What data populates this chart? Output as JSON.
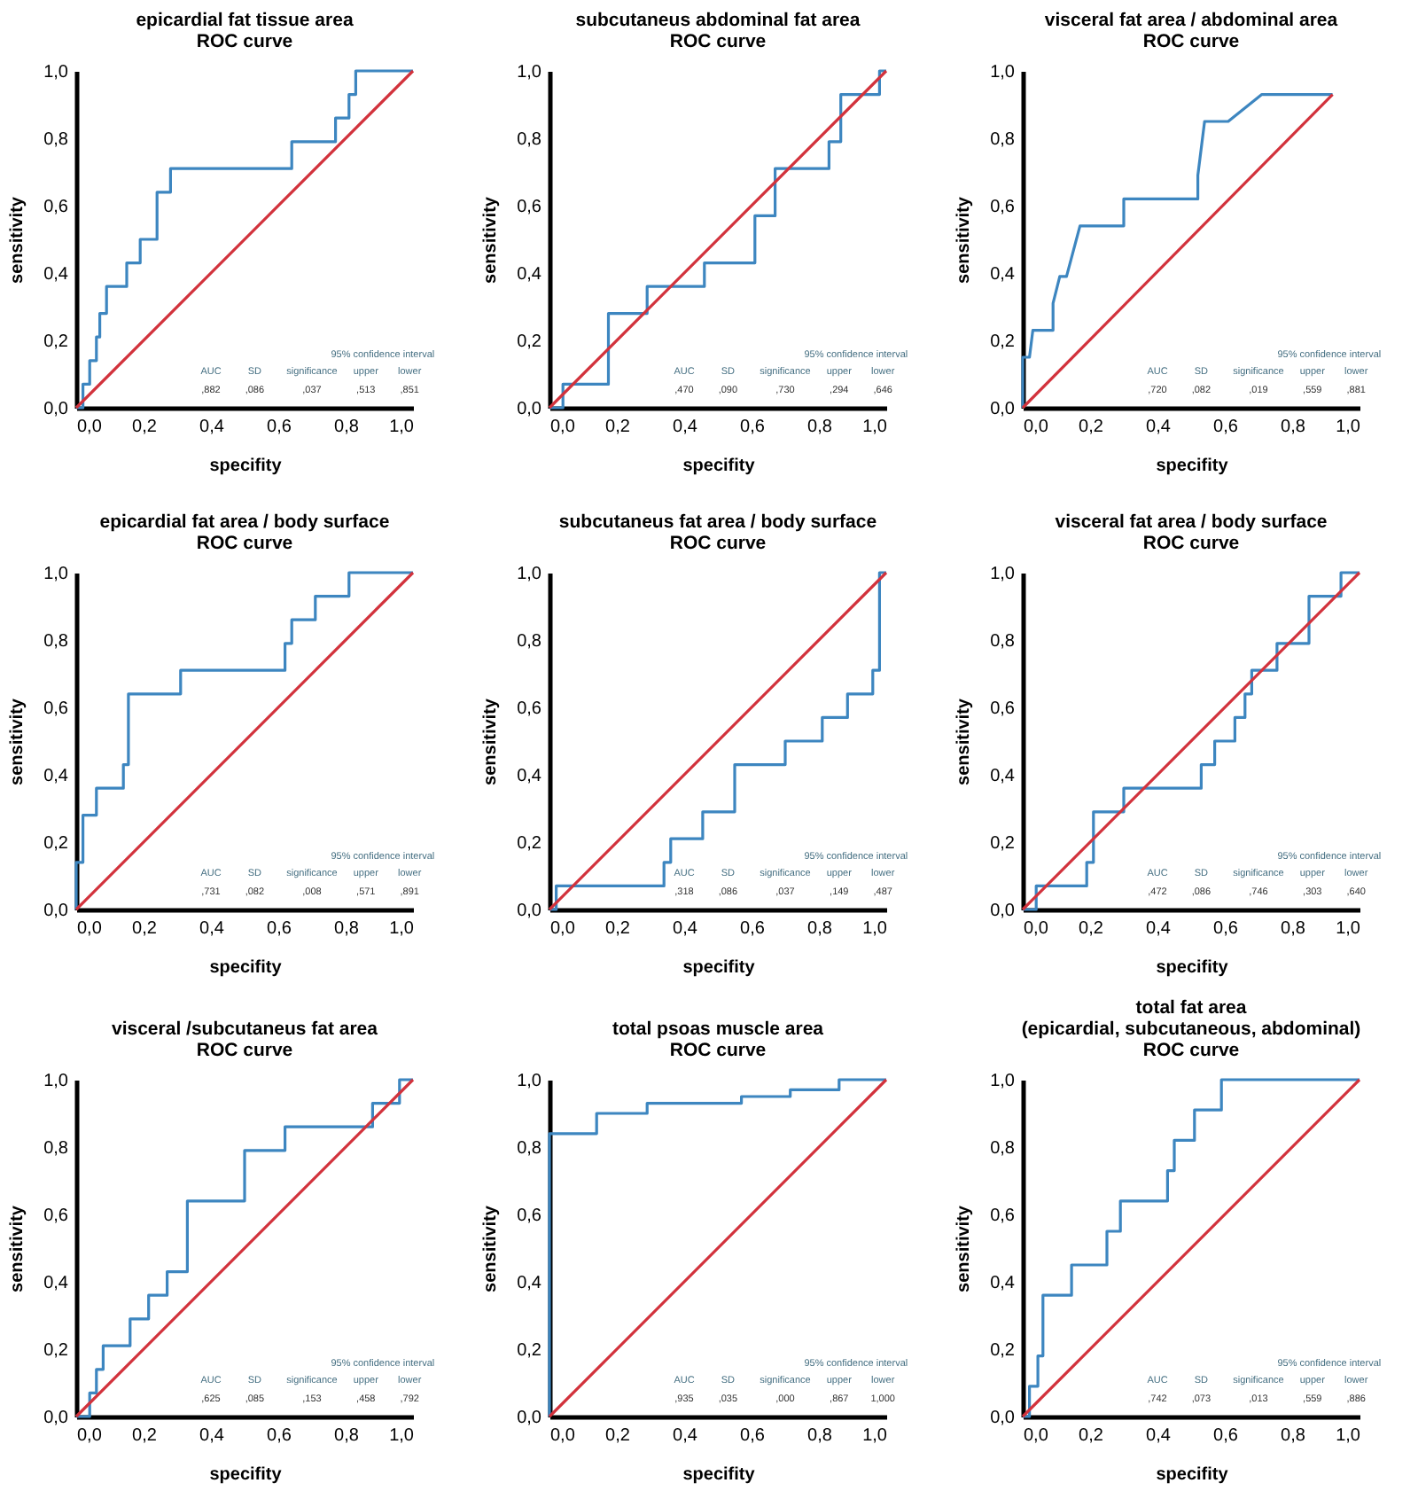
{
  "chart_data": [
    {
      "type": "step",
      "title": "epicardial fat  tissue area\nROC curve",
      "xlabel": "specifity",
      "ylabel": "sensitivity",
      "xlim": [
        0,
        1
      ],
      "ylim": [
        0,
        1
      ],
      "xticks": [
        {
          "value": 0,
          "label": "0,0"
        },
        {
          "value": 0.2,
          "label": "0,2"
        },
        {
          "value": 0.4,
          "label": "0,4"
        },
        {
          "value": 0.6,
          "label": "0,6"
        },
        {
          "value": 0.8,
          "label": "0,8"
        },
        {
          "value": 1,
          "label": "1,0"
        }
      ],
      "yticks": [
        {
          "value": 0,
          "label": "0,0"
        },
        {
          "value": 0.2,
          "label": "0,2"
        },
        {
          "value": 0.4,
          "label": "0,4"
        },
        {
          "value": 0.6,
          "label": "0,6"
        },
        {
          "value": 0.8,
          "label": "0,8"
        },
        {
          "value": 1,
          "label": "1,0"
        }
      ],
      "annotations": [
        "95% confidence interval",
        "AUC",
        "SD",
        "significance",
        "upper",
        "lower",
        ",882",
        ",086",
        ",037",
        ",513",
        ",851"
      ],
      "series": [
        {
          "color": "#3d86c0",
          "x": [
            0,
            0.02,
            0.04,
            0.06,
            0.07,
            0.09,
            0.15,
            0.19,
            0.24,
            0.28,
            0.64,
            0.77,
            0.81,
            0.83,
            1
          ],
          "values": [
            0,
            0.07,
            0.14,
            0.21,
            0.28,
            0.36,
            0.43,
            0.5,
            0.64,
            0.71,
            0.79,
            0.86,
            0.93,
            1,
            1
          ]
        },
        {
          "type": "line",
          "color": "#d2323c",
          "x": [
            0,
            1
          ],
          "values": [
            0,
            1
          ]
        }
      ]
    },
    {
      "type": "step",
      "title": "subcutaneus abdominal fat area\nROC curve",
      "xlabel": "specifity",
      "ylabel": "sensitivity",
      "xlim": [
        0,
        1
      ],
      "ylim": [
        0,
        1
      ],
      "xticks": [
        {
          "value": 0,
          "label": "0,0"
        },
        {
          "value": 0.2,
          "label": "0,2"
        },
        {
          "value": 0.4,
          "label": "0,4"
        },
        {
          "value": 0.6,
          "label": "0,6"
        },
        {
          "value": 0.8,
          "label": "0,8"
        },
        {
          "value": 1,
          "label": "1,0"
        }
      ],
      "yticks": [
        {
          "value": 0,
          "label": "0,0"
        },
        {
          "value": 0.2,
          "label": "0,2"
        },
        {
          "value": 0.4,
          "label": "0,4"
        },
        {
          "value": 0.6,
          "label": "0,6"
        },
        {
          "value": 0.8,
          "label": "0,8"
        },
        {
          "value": 1,
          "label": "1,0"
        }
      ],
      "annotations": [
        "95% confidence interval",
        "AUC",
        "SD",
        "significance",
        "upper",
        "lower",
        ",470",
        ",090",
        ",730",
        ",294",
        ",646"
      ],
      "series": [
        {
          "color": "#3d86c0",
          "x": [
            0,
            0.04,
            0.175,
            0.29,
            0.46,
            0.61,
            0.67,
            0.83,
            0.865,
            0.98,
            1
          ],
          "values": [
            0,
            0.07,
            0.28,
            0.36,
            0.43,
            0.57,
            0.71,
            0.79,
            0.93,
            1,
            1
          ]
        },
        {
          "type": "line",
          "color": "#d2323c",
          "x": [
            0,
            1
          ],
          "values": [
            0,
            1
          ]
        }
      ]
    },
    {
      "type": "line",
      "title": "visceral fat area / abdominal area\nROC curve",
      "xlabel": "specifity",
      "ylabel": "sensitivity",
      "xlim": [
        0,
        1
      ],
      "ylim": [
        0,
        1
      ],
      "xticks": [
        {
          "value": 0,
          "label": "0,0"
        },
        {
          "value": 0.2,
          "label": "0,2"
        },
        {
          "value": 0.4,
          "label": "0,4"
        },
        {
          "value": 0.6,
          "label": "0,6"
        },
        {
          "value": 0.8,
          "label": "0,8"
        },
        {
          "value": 1,
          "label": "1,0"
        }
      ],
      "yticks": [
        {
          "value": 0,
          "label": "0,0"
        },
        {
          "value": 0.2,
          "label": "0,2"
        },
        {
          "value": 0.4,
          "label": "0,4"
        },
        {
          "value": 0.6,
          "label": "0,6"
        },
        {
          "value": 0.8,
          "label": "0,8"
        },
        {
          "value": 1,
          "label": "1,0"
        }
      ],
      "annotations": [
        "95% confidence interval",
        "AUC",
        "SD",
        "significance",
        "upper",
        "lower",
        ",720",
        ",082",
        ",019",
        ",559",
        ",881"
      ],
      "series": [
        {
          "color": "#3d86c0",
          "x": [
            0,
            0,
            0.02,
            0.03,
            0.09,
            0.09,
            0.11,
            0.13,
            0.17,
            0.3,
            0.3,
            0.52,
            0.52,
            0.54,
            0.61,
            0.71,
            0.92
          ],
          "values": [
            0,
            0.15,
            0.15,
            0.23,
            0.23,
            0.31,
            0.39,
            0.39,
            0.54,
            0.54,
            0.62,
            0.62,
            0.69,
            0.85,
            0.85,
            0.93,
            0.93
          ]
        },
        {
          "type": "line",
          "color": "#d2323c",
          "x": [
            0,
            0.92
          ],
          "values": [
            0,
            0.93
          ]
        }
      ]
    },
    {
      "type": "step",
      "title": "epicardial fat area / body surface\nROC curve",
      "xlabel": "specifity",
      "ylabel": "sensitivity",
      "xlim": [
        0,
        1
      ],
      "ylim": [
        0,
        1
      ],
      "xticks": [
        {
          "value": 0,
          "label": "0,0"
        },
        {
          "value": 0.2,
          "label": "0,2"
        },
        {
          "value": 0.4,
          "label": "0,4"
        },
        {
          "value": 0.6,
          "label": "0,6"
        },
        {
          "value": 0.8,
          "label": "0,8"
        },
        {
          "value": 1,
          "label": "1,0"
        }
      ],
      "yticks": [
        {
          "value": 0,
          "label": "0,0"
        },
        {
          "value": 0.2,
          "label": "0,2"
        },
        {
          "value": 0.4,
          "label": "0,4"
        },
        {
          "value": 0.6,
          "label": "0,6"
        },
        {
          "value": 0.8,
          "label": "0,8"
        },
        {
          "value": 1,
          "label": "1,0"
        }
      ],
      "annotations": [
        "95% confidence interval",
        "AUC",
        "SD",
        "significance",
        "upper",
        "lower",
        ",731",
        ",082",
        ",008",
        ",571",
        ",891"
      ],
      "series": [
        {
          "color": "#3d86c0",
          "x": [
            0,
            0,
            0.02,
            0.06,
            0.14,
            0.155,
            0.31,
            0.62,
            0.64,
            0.71,
            0.81,
            1
          ],
          "values": [
            0,
            0.14,
            0.28,
            0.36,
            0.43,
            0.64,
            0.71,
            0.79,
            0.86,
            0.93,
            1,
            1
          ]
        },
        {
          "type": "line",
          "color": "#d2323c",
          "x": [
            0,
            1
          ],
          "values": [
            0,
            1
          ]
        }
      ]
    },
    {
      "type": "step",
      "title": "subcutaneus fat area / body surface\nROC curve",
      "xlabel": "specifity",
      "ylabel": "sensitivity",
      "xlim": [
        0,
        1
      ],
      "ylim": [
        0,
        1
      ],
      "xticks": [
        {
          "value": 0,
          "label": "0,0"
        },
        {
          "value": 0.2,
          "label": "0,2"
        },
        {
          "value": 0.4,
          "label": "0,4"
        },
        {
          "value": 0.6,
          "label": "0,6"
        },
        {
          "value": 0.8,
          "label": "0,8"
        },
        {
          "value": 1,
          "label": "1,0"
        }
      ],
      "yticks": [
        {
          "value": 0,
          "label": "0,0"
        },
        {
          "value": 0.2,
          "label": "0,2"
        },
        {
          "value": 0.4,
          "label": "0,4"
        },
        {
          "value": 0.6,
          "label": "0,6"
        },
        {
          "value": 0.8,
          "label": "0,8"
        },
        {
          "value": 1,
          "label": "1,0"
        }
      ],
      "annotations": [
        "95% confidence interval",
        "AUC",
        "SD",
        "significance",
        "upper",
        "lower",
        ",318",
        ",086",
        ",037",
        ",149",
        ",487"
      ],
      "series": [
        {
          "color": "#3d86c0",
          "x": [
            0,
            0.02,
            0.34,
            0.36,
            0.455,
            0.55,
            0.7,
            0.81,
            0.885,
            0.96,
            0.98,
            1
          ],
          "values": [
            0,
            0.07,
            0.14,
            0.21,
            0.29,
            0.43,
            0.5,
            0.57,
            0.64,
            0.71,
            1,
            1
          ]
        },
        {
          "type": "line",
          "color": "#d2323c",
          "x": [
            0,
            1
          ],
          "values": [
            0,
            1
          ]
        }
      ]
    },
    {
      "type": "step",
      "title": "visceral fat area / body surface\nROC curve",
      "xlabel": "specifity",
      "ylabel": "sensitivity",
      "xlim": [
        0,
        1
      ],
      "ylim": [
        0,
        1
      ],
      "xticks": [
        {
          "value": 0,
          "label": "0,0"
        },
        {
          "value": 0.2,
          "label": "0,2"
        },
        {
          "value": 0.4,
          "label": "0,4"
        },
        {
          "value": 0.6,
          "label": "0,6"
        },
        {
          "value": 0.8,
          "label": "0,8"
        },
        {
          "value": 1,
          "label": "1,0"
        }
      ],
      "yticks": [
        {
          "value": 0,
          "label": "0,0"
        },
        {
          "value": 0.2,
          "label": "0,2"
        },
        {
          "value": 0.4,
          "label": "0,4"
        },
        {
          "value": 0.6,
          "label": "0,6"
        },
        {
          "value": 0.8,
          "label": "0,8"
        },
        {
          "value": 1,
          "label": "1,0"
        }
      ],
      "annotations": [
        "95% confidence interval",
        "AUC",
        "SD",
        "significance",
        "upper",
        "lower",
        ",472",
        ",086",
        ",746",
        ",303",
        ",640"
      ],
      "series": [
        {
          "color": "#3d86c0",
          "x": [
            0,
            0.04,
            0.19,
            0.21,
            0.3,
            0.53,
            0.57,
            0.63,
            0.66,
            0.68,
            0.755,
            0.85,
            0.945,
            1
          ],
          "values": [
            0,
            0.07,
            0.14,
            0.29,
            0.36,
            0.43,
            0.5,
            0.57,
            0.64,
            0.71,
            0.79,
            0.93,
            1,
            1
          ]
        },
        {
          "type": "line",
          "color": "#d2323c",
          "x": [
            0,
            1
          ],
          "values": [
            0,
            1
          ]
        }
      ]
    },
    {
      "type": "step",
      "title": "visceral /subcutaneus fat area\nROC curve",
      "xlabel": "specifity",
      "ylabel": "sensitivity",
      "xlim": [
        0,
        1
      ],
      "ylim": [
        0,
        1
      ],
      "xticks": [
        {
          "value": 0,
          "label": "0,0"
        },
        {
          "value": 0.2,
          "label": "0,2"
        },
        {
          "value": 0.4,
          "label": "0,4"
        },
        {
          "value": 0.6,
          "label": "0,6"
        },
        {
          "value": 0.8,
          "label": "0,8"
        },
        {
          "value": 1,
          "label": "1,0"
        }
      ],
      "yticks": [
        {
          "value": 0,
          "label": "0,0"
        },
        {
          "value": 0.2,
          "label": "0,2"
        },
        {
          "value": 0.4,
          "label": "0,4"
        },
        {
          "value": 0.6,
          "label": "0,6"
        },
        {
          "value": 0.8,
          "label": "0,8"
        },
        {
          "value": 1,
          "label": "1,0"
        }
      ],
      "annotations": [
        "95% confidence interval",
        "AUC",
        "SD",
        "significance",
        "upper",
        "lower",
        ",625",
        ",085",
        ",153",
        ",458",
        ",792"
      ],
      "series": [
        {
          "color": "#3d86c0",
          "x": [
            0,
            0.04,
            0.06,
            0.08,
            0.16,
            0.215,
            0.27,
            0.33,
            0.5,
            0.62,
            0.88,
            0.96,
            1
          ],
          "values": [
            0,
            0.07,
            0.14,
            0.21,
            0.29,
            0.36,
            0.43,
            0.64,
            0.79,
            0.86,
            0.93,
            1,
            1
          ]
        },
        {
          "type": "line",
          "color": "#d2323c",
          "x": [
            0,
            1
          ],
          "values": [
            0,
            1
          ]
        }
      ]
    },
    {
      "type": "step",
      "title": "total psoas muscle area\nROC curve",
      "xlabel": "specifity",
      "ylabel": "sensitivity",
      "xlim": [
        0,
        1
      ],
      "ylim": [
        0,
        1
      ],
      "xticks": [
        {
          "value": 0,
          "label": "0,0"
        },
        {
          "value": 0.2,
          "label": "0,2"
        },
        {
          "value": 0.4,
          "label": "0,4"
        },
        {
          "value": 0.6,
          "label": "0,6"
        },
        {
          "value": 0.8,
          "label": "0,8"
        },
        {
          "value": 1,
          "label": "1,0"
        }
      ],
      "yticks": [
        {
          "value": 0,
          "label": "0,0"
        },
        {
          "value": 0.2,
          "label": "0,2"
        },
        {
          "value": 0.4,
          "label": "0,4"
        },
        {
          "value": 0.6,
          "label": "0,6"
        },
        {
          "value": 0.8,
          "label": "0,8"
        },
        {
          "value": 1,
          "label": "1,0"
        }
      ],
      "annotations": [
        "95% confidence interval",
        "AUC",
        "SD",
        "significance",
        "upper",
        "lower",
        ",935",
        ",035",
        ",000",
        ",867",
        "1,000"
      ],
      "series": [
        {
          "color": "#3d86c0",
          "x": [
            0,
            0,
            0.14,
            0.29,
            0.57,
            0.715,
            0.86,
            1
          ],
          "values": [
            0,
            0.84,
            0.9,
            0.93,
            0.95,
            0.97,
            1,
            1
          ]
        },
        {
          "type": "line",
          "color": "#d2323c",
          "x": [
            0,
            1
          ],
          "values": [
            0,
            1
          ]
        }
      ]
    },
    {
      "type": "step",
      "title": "total fat area\n(epicardial, subcutaneous, abdominal)\nROC curve",
      "xlabel": "specifity",
      "ylabel": "sensitivity",
      "xlim": [
        0,
        1
      ],
      "ylim": [
        0,
        1
      ],
      "xticks": [
        {
          "value": 0,
          "label": "0,0"
        },
        {
          "value": 0.2,
          "label": "0,2"
        },
        {
          "value": 0.4,
          "label": "0,4"
        },
        {
          "value": 0.6,
          "label": "0,6"
        },
        {
          "value": 0.8,
          "label": "0,8"
        },
        {
          "value": 1,
          "label": "1,0"
        }
      ],
      "yticks": [
        {
          "value": 0,
          "label": "0,0"
        },
        {
          "value": 0.2,
          "label": "0,2"
        },
        {
          "value": 0.4,
          "label": "0,4"
        },
        {
          "value": 0.6,
          "label": "0,6"
        },
        {
          "value": 0.8,
          "label": "0,8"
        },
        {
          "value": 1,
          "label": "1,0"
        }
      ],
      "annotations": [
        "95% confidence interval",
        "AUC",
        "SD",
        "significance",
        "upper",
        "lower",
        ",742",
        ",073",
        ",013",
        ",559",
        ",886"
      ],
      "series": [
        {
          "color": "#3d86c0",
          "x": [
            0,
            0.02,
            0.045,
            0.06,
            0.145,
            0.25,
            0.29,
            0.43,
            0.45,
            0.51,
            0.59,
            1
          ],
          "values": [
            0,
            0.09,
            0.18,
            0.36,
            0.45,
            0.55,
            0.64,
            0.73,
            0.82,
            0.91,
            1,
            1
          ]
        },
        {
          "type": "line",
          "color": "#d2323c",
          "x": [
            0,
            1
          ],
          "values": [
            0,
            1
          ]
        }
      ]
    }
  ]
}
